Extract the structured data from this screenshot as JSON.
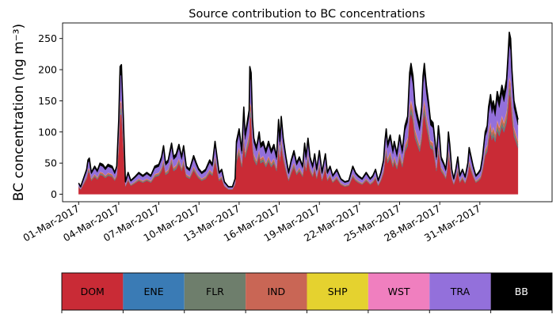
{
  "chart_data": {
    "type": "area",
    "title": "Source contribution to BC concentrations",
    "ylabel": "BC concentration (ng m⁻³)",
    "xlabel": "",
    "ylim": [
      -12,
      275
    ],
    "xlim": [
      -1.2,
      35.4
    ],
    "yticks": [
      0,
      50,
      100,
      150,
      200,
      250
    ],
    "xticks": [
      {
        "day": 0,
        "label": "01-Mar-2017"
      },
      {
        "day": 3,
        "label": "04-Mar-2017"
      },
      {
        "day": 6,
        "label": "07-Mar-2017"
      },
      {
        "day": 9,
        "label": "10-Mar-2017"
      },
      {
        "day": 12,
        "label": "13-Mar-2017"
      },
      {
        "day": 15,
        "label": "16-Mar-2017"
      },
      {
        "day": 18,
        "label": "19-Mar-2017"
      },
      {
        "day": 21,
        "label": "22-Mar-2017"
      },
      {
        "day": 24,
        "label": "25-Mar-2017"
      },
      {
        "day": 27,
        "label": "28-Mar-2017"
      },
      {
        "day": 30,
        "label": "31-Mar-2017"
      }
    ],
    "stack_order": [
      "DOM",
      "ENE",
      "FLR",
      "IND",
      "SHP",
      "WST",
      "TRA",
      "BB"
    ],
    "colors": {
      "DOM": "#c92b36",
      "ENE": "#3a7bb5",
      "FLR": "#6e7e6c",
      "IND": "#c96655",
      "SHP": "#e5d22f",
      "WST": "#f07fbf",
      "TRA": "#9370db",
      "BB": "#000000"
    },
    "legend": [
      {
        "name": "DOM",
        "color": "#c92b36",
        "text_color": "#000000"
      },
      {
        "name": "ENE",
        "color": "#3a7bb5",
        "text_color": "#000000"
      },
      {
        "name": "FLR",
        "color": "#6e7e6c",
        "text_color": "#000000"
      },
      {
        "name": "IND",
        "color": "#c96655",
        "text_color": "#000000"
      },
      {
        "name": "SHP",
        "color": "#e5d22f",
        "text_color": "#000000"
      },
      {
        "name": "WST",
        "color": "#f07fbf",
        "text_color": "#000000"
      },
      {
        "name": "TRA",
        "color": "#9370db",
        "text_color": "#000000"
      },
      {
        "name": "BB",
        "color": "#000000",
        "text_color": "#ffffff"
      }
    ],
    "total_keypoints": [
      [
        0.0,
        18
      ],
      [
        0.15,
        12
      ],
      [
        0.6,
        40
      ],
      [
        0.7,
        55
      ],
      [
        0.8,
        58
      ],
      [
        0.95,
        35
      ],
      [
        1.2,
        45
      ],
      [
        1.4,
        38
      ],
      [
        1.6,
        50
      ],
      [
        1.8,
        48
      ],
      [
        2.0,
        42
      ],
      [
        2.2,
        48
      ],
      [
        2.5,
        45
      ],
      [
        2.7,
        35
      ],
      [
        2.85,
        45
      ],
      [
        3.0,
        120
      ],
      [
        3.1,
        205
      ],
      [
        3.2,
        208
      ],
      [
        3.35,
        120
      ],
      [
        3.5,
        20
      ],
      [
        3.7,
        35
      ],
      [
        3.9,
        22
      ],
      [
        4.2,
        28
      ],
      [
        4.5,
        35
      ],
      [
        4.8,
        30
      ],
      [
        5.1,
        35
      ],
      [
        5.4,
        30
      ],
      [
        5.7,
        45
      ],
      [
        6.0,
        48
      ],
      [
        6.2,
        60
      ],
      [
        6.35,
        78
      ],
      [
        6.5,
        50
      ],
      [
        6.7,
        55
      ],
      [
        6.95,
        82
      ],
      [
        7.1,
        60
      ],
      [
        7.3,
        65
      ],
      [
        7.5,
        80
      ],
      [
        7.7,
        60
      ],
      [
        7.85,
        78
      ],
      [
        8.05,
        45
      ],
      [
        8.3,
        40
      ],
      [
        8.6,
        62
      ],
      [
        8.8,
        50
      ],
      [
        8.95,
        42
      ],
      [
        9.2,
        35
      ],
      [
        9.5,
        40
      ],
      [
        9.8,
        55
      ],
      [
        10.0,
        48
      ],
      [
        10.2,
        85
      ],
      [
        10.35,
        60
      ],
      [
        10.5,
        35
      ],
      [
        10.7,
        40
      ],
      [
        10.9,
        20
      ],
      [
        11.2,
        12
      ],
      [
        11.5,
        12
      ],
      [
        11.7,
        25
      ],
      [
        11.8,
        85
      ],
      [
        12.0,
        105
      ],
      [
        12.2,
        70
      ],
      [
        12.35,
        140
      ],
      [
        12.45,
        95
      ],
      [
        12.75,
        135
      ],
      [
        12.8,
        205
      ],
      [
        12.9,
        195
      ],
      [
        13.0,
        120
      ],
      [
        13.1,
        90
      ],
      [
        13.3,
        75
      ],
      [
        13.5,
        100
      ],
      [
        13.6,
        80
      ],
      [
        13.8,
        85
      ],
      [
        14.0,
        70
      ],
      [
        14.2,
        85
      ],
      [
        14.4,
        70
      ],
      [
        14.6,
        80
      ],
      [
        14.8,
        60
      ],
      [
        14.95,
        120
      ],
      [
        15.05,
        85
      ],
      [
        15.15,
        125
      ],
      [
        15.3,
        90
      ],
      [
        15.5,
        60
      ],
      [
        15.7,
        35
      ],
      [
        15.9,
        55
      ],
      [
        16.1,
        70
      ],
      [
        16.3,
        50
      ],
      [
        16.5,
        60
      ],
      [
        16.75,
        45
      ],
      [
        16.9,
        82
      ],
      [
        17.0,
        60
      ],
      [
        17.15,
        90
      ],
      [
        17.3,
        60
      ],
      [
        17.5,
        45
      ],
      [
        17.65,
        65
      ],
      [
        17.8,
        40
      ],
      [
        18.0,
        70
      ],
      [
        18.2,
        35
      ],
      [
        18.45,
        65
      ],
      [
        18.6,
        35
      ],
      [
        18.8,
        45
      ],
      [
        19.0,
        30
      ],
      [
        19.3,
        40
      ],
      [
        19.6,
        25
      ],
      [
        19.9,
        20
      ],
      [
        20.2,
        22
      ],
      [
        20.5,
        45
      ],
      [
        20.7,
        35
      ],
      [
        20.9,
        30
      ],
      [
        21.2,
        25
      ],
      [
        21.5,
        35
      ],
      [
        21.8,
        25
      ],
      [
        22.0,
        30
      ],
      [
        22.2,
        40
      ],
      [
        22.4,
        22
      ],
      [
        22.6,
        35
      ],
      [
        22.8,
        55
      ],
      [
        22.9,
        85
      ],
      [
        23.0,
        105
      ],
      [
        23.1,
        80
      ],
      [
        23.3,
        95
      ],
      [
        23.5,
        70
      ],
      [
        23.6,
        85
      ],
      [
        23.8,
        65
      ],
      [
        24.0,
        95
      ],
      [
        24.2,
        70
      ],
      [
        24.4,
        110
      ],
      [
        24.6,
        125
      ],
      [
        24.75,
        195
      ],
      [
        24.85,
        210
      ],
      [
        25.0,
        190
      ],
      [
        25.15,
        145
      ],
      [
        25.3,
        130
      ],
      [
        25.5,
        110
      ],
      [
        25.65,
        140
      ],
      [
        25.75,
        190
      ],
      [
        25.85,
        210
      ],
      [
        26.0,
        175
      ],
      [
        26.15,
        150
      ],
      [
        26.3,
        120
      ],
      [
        26.5,
        115
      ],
      [
        26.65,
        85
      ],
      [
        26.75,
        60
      ],
      [
        26.9,
        110
      ],
      [
        27.0,
        90
      ],
      [
        27.1,
        60
      ],
      [
        27.3,
        50
      ],
      [
        27.45,
        40
      ],
      [
        27.55,
        60
      ],
      [
        27.65,
        100
      ],
      [
        27.75,
        80
      ],
      [
        27.9,
        40
      ],
      [
        28.05,
        25
      ],
      [
        28.2,
        40
      ],
      [
        28.35,
        60
      ],
      [
        28.5,
        30
      ],
      [
        28.7,
        40
      ],
      [
        28.9,
        28
      ],
      [
        29.1,
        50
      ],
      [
        29.2,
        75
      ],
      [
        29.35,
        60
      ],
      [
        29.5,
        45
      ],
      [
        29.7,
        30
      ],
      [
        29.9,
        35
      ],
      [
        30.05,
        40
      ],
      [
        30.2,
        60
      ],
      [
        30.4,
        100
      ],
      [
        30.55,
        110
      ],
      [
        30.65,
        140
      ],
      [
        30.8,
        160
      ],
      [
        30.9,
        140
      ],
      [
        31.0,
        150
      ],
      [
        31.15,
        135
      ],
      [
        31.3,
        165
      ],
      [
        31.45,
        150
      ],
      [
        31.65,
        175
      ],
      [
        31.8,
        160
      ],
      [
        32.0,
        185
      ],
      [
        32.1,
        220
      ],
      [
        32.2,
        260
      ],
      [
        32.3,
        250
      ],
      [
        32.4,
        200
      ],
      [
        32.55,
        150
      ],
      [
        32.7,
        135
      ],
      [
        32.85,
        120
      ]
    ],
    "component_fractions": {
      "DOM": 0.62,
      "ENE": 0.01,
      "FLR": 0.035,
      "IND": 0.045,
      "SHP": 0.005,
      "WST": 0.01,
      "TRA": 0.2,
      "BB": 0.075
    }
  }
}
